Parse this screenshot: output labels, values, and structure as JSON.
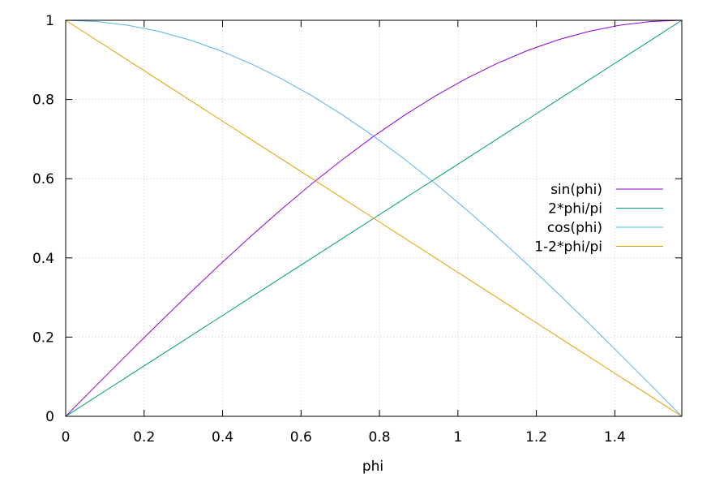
{
  "chart_data": {
    "type": "line",
    "title": "",
    "xlabel": "phi",
    "ylabel": "",
    "xlim": [
      0,
      1.5708
    ],
    "ylim": [
      0,
      1
    ],
    "x_ticks": [
      "0",
      "0.2",
      "0.4",
      "0.6",
      "0.8",
      "1",
      "1.2",
      "1.4"
    ],
    "x_tick_values": [
      0,
      0.2,
      0.4,
      0.6,
      0.8,
      1.0,
      1.2,
      1.4
    ],
    "y_ticks": [
      "0",
      "0.2",
      "0.4",
      "0.6",
      "0.8",
      "1"
    ],
    "y_tick_values": [
      0,
      0.2,
      0.4,
      0.6,
      0.8,
      1.0
    ],
    "grid": true,
    "legend_position": "right",
    "x": [
      0,
      0.0785,
      0.1571,
      0.2356,
      0.3142,
      0.3927,
      0.4712,
      0.5498,
      0.6283,
      0.7069,
      0.7854,
      0.8639,
      0.9425,
      1.021,
      1.0996,
      1.1781,
      1.2566,
      1.3352,
      1.4137,
      1.4923,
      1.5708
    ],
    "series": [
      {
        "name": "sin(phi)",
        "color": "#9400d3",
        "values": [
          0,
          0.0785,
          0.1564,
          0.2334,
          0.309,
          0.3827,
          0.454,
          0.5225,
          0.5878,
          0.6494,
          0.7071,
          0.7604,
          0.809,
          0.8526,
          0.891,
          0.9239,
          0.9511,
          0.9724,
          0.9877,
          0.9969,
          1
        ]
      },
      {
        "name": "2*phi/pi",
        "color": "#009e73",
        "values": [
          0,
          0.05,
          0.1,
          0.15,
          0.2,
          0.25,
          0.3,
          0.35,
          0.4,
          0.45,
          0.5,
          0.55,
          0.6,
          0.65,
          0.7,
          0.75,
          0.8,
          0.85,
          0.9,
          0.95,
          1
        ]
      },
      {
        "name": "cos(phi)",
        "color": "#56b4e9",
        "values": [
          1,
          0.9969,
          0.9877,
          0.9724,
          0.9511,
          0.9239,
          0.891,
          0.8526,
          0.809,
          0.7604,
          0.7071,
          0.6494,
          0.5878,
          0.5225,
          0.454,
          0.3827,
          0.309,
          0.2334,
          0.1564,
          0.0785,
          0
        ]
      },
      {
        "name": "1-2*phi/pi",
        "color": "#e69f00",
        "values": [
          1,
          0.95,
          0.9,
          0.85,
          0.8,
          0.75,
          0.7,
          0.65,
          0.6,
          0.55,
          0.5,
          0.45,
          0.4,
          0.35,
          0.3,
          0.25,
          0.2,
          0.15,
          0.1,
          0.05,
          0
        ]
      }
    ]
  }
}
